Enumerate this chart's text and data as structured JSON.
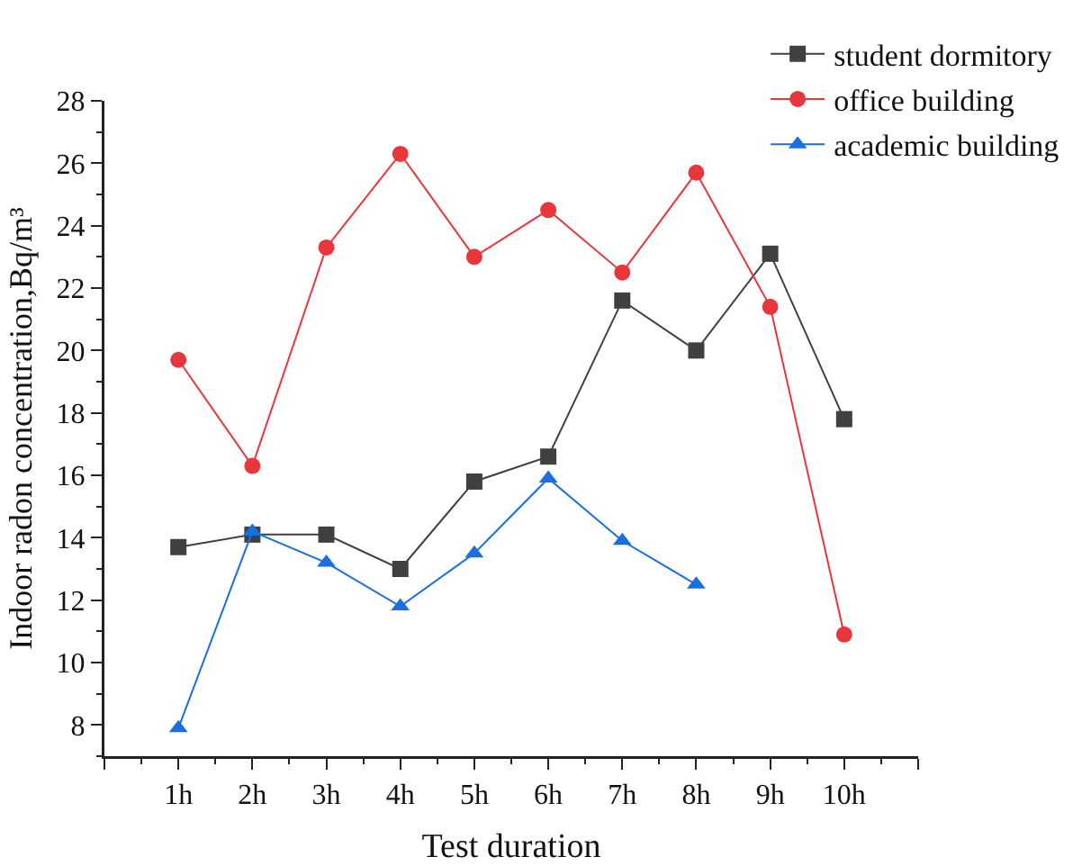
{
  "chart_data": {
    "type": "line",
    "xlabel": "Test duration",
    "ylabel": "Indoor radon concentration,Bq/m³",
    "x": [
      1,
      2,
      3,
      4,
      5,
      6,
      7,
      8,
      9,
      10
    ],
    "xlim": [
      0,
      11
    ],
    "xticks": [
      {
        "value": 0,
        "label": null
      },
      {
        "value": 1,
        "label": "1h"
      },
      {
        "value": 2,
        "label": "2h"
      },
      {
        "value": 3,
        "label": "3h"
      },
      {
        "value": 4,
        "label": "4h"
      },
      {
        "value": 5,
        "label": "5h"
      },
      {
        "value": 6,
        "label": "6h"
      },
      {
        "value": 7,
        "label": "7h"
      },
      {
        "value": 8,
        "label": "8h"
      },
      {
        "value": 9,
        "label": "9h"
      },
      {
        "value": 10,
        "label": "10h"
      },
      {
        "value": 11,
        "label": null
      }
    ],
    "ylim": [
      7,
      28
    ],
    "yticks": [
      8,
      10,
      12,
      14,
      16,
      18,
      20,
      22,
      24,
      26,
      28
    ],
    "series": [
      {
        "name": "student dormitory",
        "color": "#404040",
        "marker": "square",
        "values": [
          13.7,
          14.1,
          14.1,
          13.0,
          15.8,
          16.6,
          21.6,
          20.0,
          23.1,
          17.8
        ]
      },
      {
        "name": "office building",
        "color": "#e8373c",
        "marker": "circle",
        "values": [
          19.7,
          16.3,
          23.3,
          26.3,
          23.0,
          24.5,
          22.5,
          25.7,
          21.4,
          10.9
        ]
      },
      {
        "name": "academic building",
        "color": "#1a6fdf",
        "marker": "triangle",
        "values": [
          7.9,
          14.2,
          13.2,
          11.8,
          13.5,
          15.9,
          13.9,
          12.5,
          null,
          null
        ]
      }
    ],
    "grid": false,
    "legend": "top right",
    "line_style": "solid"
  }
}
